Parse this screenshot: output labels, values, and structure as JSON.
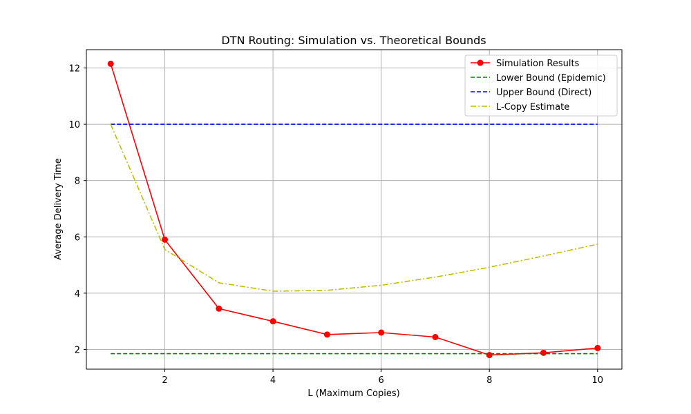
{
  "chart_data": {
    "type": "line",
    "title": "DTN Routing: Simulation vs. Theoretical Bounds",
    "xlabel": "L (Maximum Copies)",
    "ylabel": "Average Delivery Time",
    "xlim": [
      0.55,
      10.45
    ],
    "ylim": [
      1.3,
      12.65
    ],
    "xticks": [
      2,
      4,
      6,
      8,
      10
    ],
    "yticks": [
      2,
      4,
      6,
      8,
      10,
      12
    ],
    "grid": true,
    "legend_position": "top-right",
    "x": [
      1,
      2,
      3,
      4,
      5,
      6,
      7,
      8,
      9,
      10
    ],
    "series": [
      {
        "name": "Simulation Results",
        "color": "#ff0000",
        "style": "solid-marker",
        "values": [
          12.15,
          5.9,
          3.45,
          3.0,
          2.53,
          2.6,
          2.44,
          1.8,
          1.88,
          2.05
        ]
      },
      {
        "name": "Lower Bound (Epidemic)",
        "color": "#008000",
        "style": "dashed",
        "values": [
          1.85,
          1.85,
          1.85,
          1.85,
          1.85,
          1.85,
          1.85,
          1.85,
          1.85,
          1.85
        ]
      },
      {
        "name": "Upper Bound (Direct)",
        "color": "#0000ff",
        "style": "dashed",
        "values": [
          10,
          10,
          10,
          10,
          10,
          10,
          10,
          10,
          10,
          10
        ]
      },
      {
        "name": "L-Copy Estimate",
        "color": "#bfbf00",
        "style": "dashdot",
        "values": [
          10.0,
          5.55,
          4.37,
          4.07,
          4.1,
          4.28,
          4.57,
          4.92,
          5.32,
          5.74
        ]
      }
    ]
  }
}
